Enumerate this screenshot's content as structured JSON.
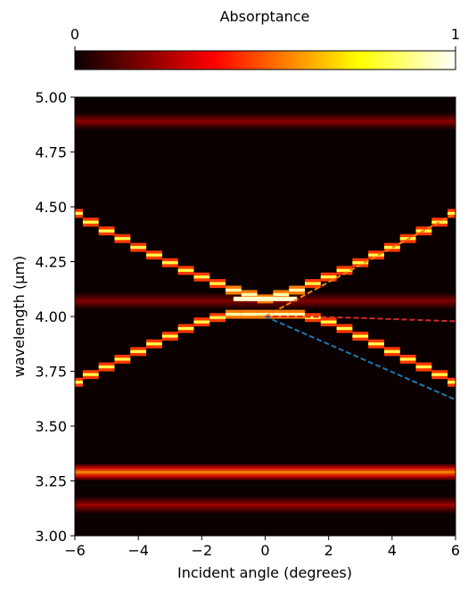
{
  "chart_data": {
    "type": "heatmap",
    "title": "",
    "xlabel": "Incident angle (degrees)",
    "ylabel": "wavelength ($\\mu$m)",
    "xlim": [
      -6,
      6
    ],
    "ylim": [
      3.0,
      5.0
    ],
    "xticks": [
      -6,
      -4,
      -2,
      0,
      2,
      4,
      6
    ],
    "xtick_labels": [
      "−6",
      "−4",
      "−2",
      "0",
      "2",
      "4",
      "6"
    ],
    "yticks": [
      3.0,
      3.25,
      3.5,
      3.75,
      4.0,
      4.25,
      4.5,
      4.75,
      5.0
    ],
    "ytick_labels": [
      "3.00",
      "3.25",
      "3.50",
      "3.75",
      "4.00",
      "4.25",
      "4.50",
      "4.75",
      "5.00"
    ],
    "colormap": "hot",
    "colorbar": {
      "label": "Absorptance",
      "min": 0,
      "max": 1,
      "min_label": "0",
      "max_label": "1",
      "position": "top"
    },
    "horizontal_bands": [
      {
        "wavelength": 4.89,
        "strength": 0.22
      },
      {
        "wavelength": 4.07,
        "strength": 0.2
      },
      {
        "wavelength": 3.29,
        "strength": 0.65
      },
      {
        "wavelength": 3.14,
        "strength": 0.25
      }
    ],
    "upper_branch": {
      "angles": [
        -6,
        -5.5,
        -5,
        -4.5,
        -4,
        -3.5,
        -3,
        -2.5,
        -2,
        -1.5,
        -1,
        -0.5,
        0,
        0.5,
        1,
        1.5,
        2,
        2.5,
        3,
        3.5,
        4,
        4.5,
        5,
        5.5,
        6
      ],
      "wavelengths": [
        4.47,
        4.43,
        4.39,
        4.355,
        4.315,
        4.28,
        4.245,
        4.21,
        4.18,
        4.15,
        4.12,
        4.1,
        4.08,
        4.1,
        4.12,
        4.15,
        4.18,
        4.21,
        4.245,
        4.28,
        4.315,
        4.355,
        4.39,
        4.43,
        4.47
      ]
    },
    "lower_branch": {
      "angles": [
        -6,
        -5.5,
        -5,
        -4.5,
        -4,
        -3.5,
        -3,
        -2.5,
        -2,
        -1.5,
        -1,
        -0.5,
        0,
        0.5,
        1,
        1.5,
        2,
        2.5,
        3,
        3.5,
        4,
        4.5,
        5,
        5.5,
        6
      ],
      "wavelengths": [
        3.7,
        3.735,
        3.77,
        3.805,
        3.84,
        3.875,
        3.91,
        3.945,
        3.975,
        3.995,
        4.01,
        4.01,
        4.01,
        4.01,
        4.01,
        3.995,
        3.975,
        3.945,
        3.91,
        3.875,
        3.84,
        3.805,
        3.77,
        3.735,
        3.7
      ]
    },
    "series": [
      {
        "color": "#ff7f0e",
        "style": "dashed",
        "x": [
          0,
          6
        ],
        "y": [
          4.0,
          4.47
        ]
      },
      {
        "color": "#d62728",
        "style": "dashed",
        "x": [
          0,
          1,
          2,
          3,
          4,
          5,
          6
        ],
        "y": [
          4.0,
          4.0,
          3.997,
          3.993,
          3.988,
          3.983,
          3.978
        ]
      },
      {
        "color": "#1f77b4",
        "style": "dashed",
        "x": [
          0,
          6
        ],
        "y": [
          4.0,
          3.62
        ]
      }
    ]
  }
}
